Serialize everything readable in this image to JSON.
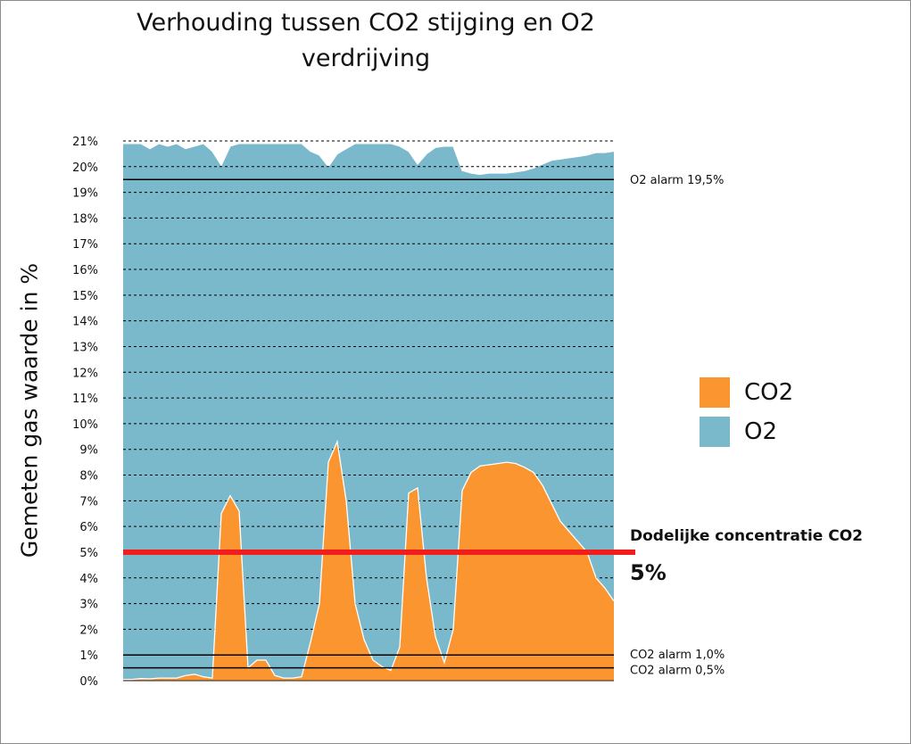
{
  "chart_data": {
    "type": "area",
    "title": "Verhouding tussen CO2 stijging en O2 verdrijving",
    "ylabel": "Gemeten gas waarde in %",
    "ylim": [
      0,
      21
    ],
    "yticks": [
      "0%",
      "1%",
      "2%",
      "3%",
      "4%",
      "5%",
      "6%",
      "7%",
      "8%",
      "9%",
      "10%",
      "11%",
      "12%",
      "13%",
      "14%",
      "15%",
      "16%",
      "17%",
      "18%",
      "19%",
      "20%",
      "21%"
    ],
    "grid": true,
    "legend_position": "right",
    "series": [
      {
        "name": "O2",
        "color": "#7ab8cc",
        "values": [
          20.9,
          20.9,
          20.9,
          20.7,
          20.9,
          20.8,
          20.9,
          20.7,
          20.8,
          20.9,
          20.6,
          20.05,
          20.8,
          20.9,
          20.9,
          20.9,
          20.9,
          20.9,
          20.9,
          20.9,
          20.9,
          20.6,
          20.45,
          20.0,
          20.5,
          20.7,
          20.9,
          20.9,
          20.9,
          20.9,
          20.9,
          20.8,
          20.6,
          20.1,
          20.5,
          20.75,
          20.8,
          20.8,
          19.85,
          19.75,
          19.7,
          19.75,
          19.75,
          19.75,
          19.8,
          19.85,
          19.95,
          20.1,
          20.25,
          20.3,
          20.35,
          20.4,
          20.45,
          20.55,
          20.55,
          20.6
        ]
      },
      {
        "name": "CO2",
        "color": "#fb9530",
        "values": [
          0.05,
          0.05,
          0.08,
          0.07,
          0.1,
          0.1,
          0.1,
          0.2,
          0.25,
          0.15,
          0.1,
          6.5,
          7.2,
          6.6,
          0.5,
          0.8,
          0.8,
          0.2,
          0.1,
          0.1,
          0.15,
          1.5,
          3.0,
          8.5,
          9.3,
          7.0,
          3.0,
          1.6,
          0.8,
          0.55,
          0.4,
          1.3,
          7.3,
          7.5,
          4.0,
          1.7,
          0.7,
          2.0,
          7.4,
          8.1,
          8.35,
          8.4,
          8.45,
          8.5,
          8.45,
          8.3,
          8.1,
          7.6,
          6.9,
          6.2,
          5.8,
          5.4,
          5.0,
          4.0,
          3.6,
          3.1
        ]
      }
    ],
    "reference_lines": [
      {
        "value": 19.5,
        "label": "O2 alarm 19,5%",
        "color": "#000000"
      },
      {
        "value": 1.0,
        "label": "CO2 alarm 1,0%",
        "color": "#000000"
      },
      {
        "value": 0.5,
        "label": "CO2 alarm 0,5%",
        "color": "#000000"
      },
      {
        "value": 5.0,
        "label": "Dodelijke concentratie CO2",
        "value_label": "5%",
        "color": "#f21d1d"
      }
    ]
  }
}
